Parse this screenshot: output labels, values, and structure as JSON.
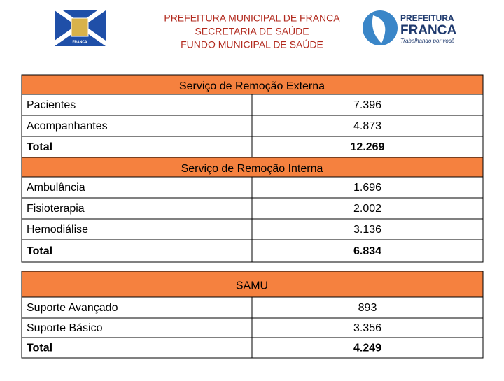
{
  "header": {
    "lines": [
      "PREFEITURA MUNICIPAL DE FRANCA",
      "SECRETARIA DE SAÚDE",
      "FUNDO MUNICIPAL DE SAÚDE"
    ]
  },
  "left_logo": {
    "text": "FRANCA"
  },
  "right_logo": {
    "top": "PREFEITURA",
    "name": "FRANCA",
    "slogan": "Trabalhando por você"
  },
  "sections": [
    {
      "title": "Serviço de Remoção Externa",
      "rows": [
        [
          "Pacientes",
          "7.396"
        ],
        [
          "Acompanhantes",
          "4.873"
        ],
        [
          "Total",
          "12.269"
        ]
      ]
    },
    {
      "title": "Serviço de Remoção Interna",
      "rows": [
        [
          "Ambulância",
          "1.696"
        ],
        [
          "Fisioterapia",
          "2.002"
        ],
        [
          "Hemodiálise",
          "3.136"
        ],
        [
          "Total",
          "6.834"
        ]
      ]
    },
    {
      "title": "SAMU",
      "rows": [
        [
          "Suporte Avançado",
          "893"
        ],
        [
          "Suporte Básico",
          "3.356"
        ],
        [
          "Total",
          "4.249"
        ]
      ]
    }
  ]
}
